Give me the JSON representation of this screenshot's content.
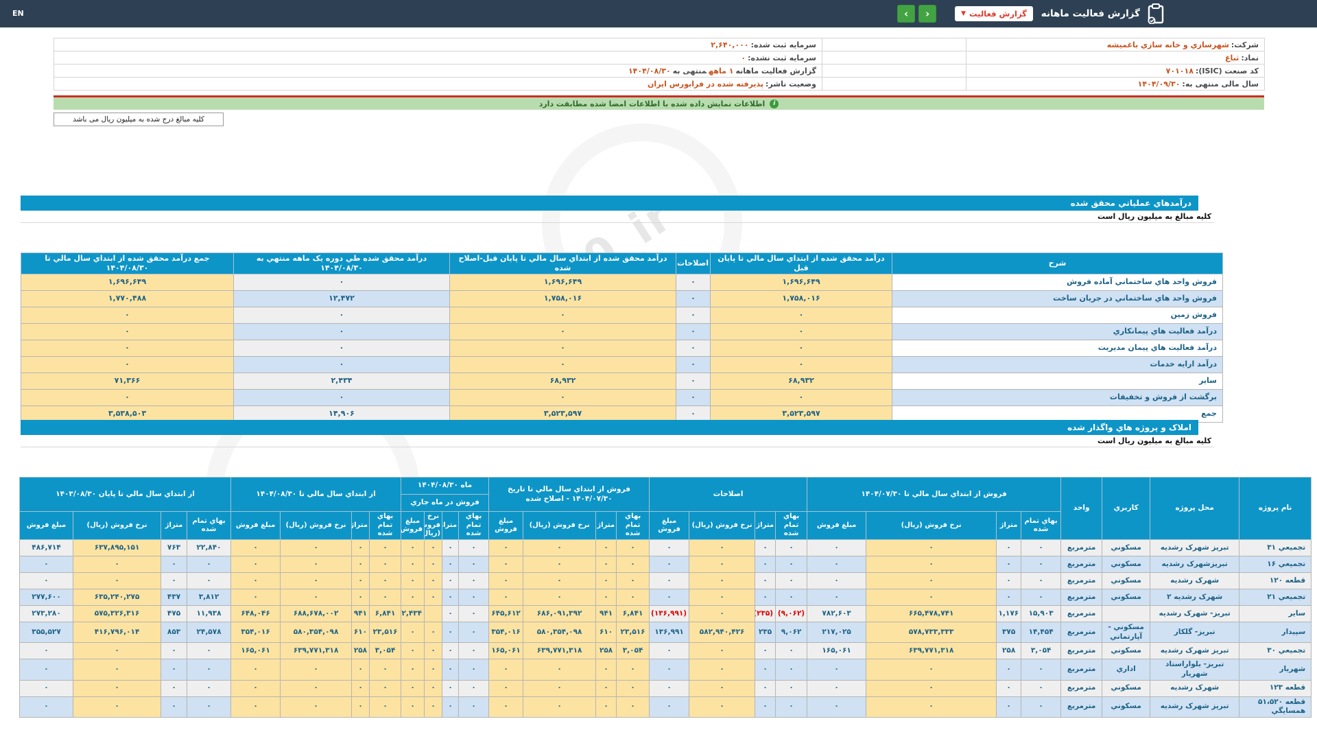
{
  "colors": {
    "accent_blue": "#0e95c8",
    "topbar": "#2e4154",
    "yellow_cell": "#fce3a1",
    "blue_cell": "#cfe1f3",
    "gray_cell": "#efefef",
    "notice_green": "#b9dcae",
    "red_line": "#ce2b24",
    "value_orange": "#c9541f",
    "number_teal": "#1e6287",
    "negative_red": "#e00000",
    "button_green": "#43a343",
    "button_red_text": "#e03a2f"
  },
  "topbar": {
    "en_label": "EN",
    "title": "گزارش فعالیت ماهانه",
    "report_button_label": "گزارش فعالیت",
    "caret_icon": "▼",
    "chevron_left_icon": "‹",
    "chevron_right_icon": "›",
    "clipboard_icon": "clipboard-icon"
  },
  "header_info": {
    "rows": [
      {
        "right": {
          "label": "شرکت:",
          "value": "شهرسازي و خانه سازي باغميشه"
        },
        "left": {
          "label": "سرمایه ثبت شده:",
          "value": "۲,۶۴۰,۰۰۰"
        }
      },
      {
        "right": {
          "label": "نماد:",
          "value": "ثباغ"
        },
        "left": {
          "label": "سرمایه ثبت نشده:",
          "value": "۰"
        }
      },
      {
        "right": {
          "label": "کد صنعت (ISIC):",
          "value": "۷۰۱۰۱۸"
        },
        "left": {
          "label": "گزارش فعالیت ماهانه",
          "value": "۱ ماهه",
          "label2": "منتهی به",
          "value2": "۱۴۰۴/۰۸/۳۰"
        }
      },
      {
        "right": {
          "label": "سال مالی منتهی به:",
          "value": "۱۴۰۴/۰۹/۳۰"
        },
        "left": {
          "label": "وضعیت ناشر:",
          "value": "پذیرفته شده در فرابورس ایران"
        }
      }
    ]
  },
  "notice_text": "اطلاعات نمایش داده شده با اطلاعات امضا شده مطابقت دارد",
  "unit_note": "کلیه مبالغ درج شده به میلیون ریال می باشد",
  "watermark": "@Codal360_ir",
  "section1": {
    "title": "درآمدهاي عملياتي محقق شده",
    "subtitle": "کلیه مبالغ به میلیون ریال است",
    "headers": {
      "desc": "شرح",
      "prev": "درآمد محقق شده از ابتداي سال مالي تا پايان قبل",
      "adj": "اصلاحات",
      "adjusted": "درآمد محقق شده از ابتداي سال مالي تا پايان قبل-اصلاح شده",
      "month": "درآمد محقق شده طي دوره يک ماهه منتهي به ۱۴۰۴/۰۸/۳۰",
      "total": "جمع درآمد محقق شده از ابتداي سال مالي تا ۱۴۰۴/۰۸/۳۰"
    },
    "rows": [
      {
        "label": "فروش واحد هاي ساختماني آماده فروش",
        "prev": "۱,۶۹۶,۶۴۹",
        "adj": "۰",
        "adjusted": "۱,۶۹۶,۶۴۹",
        "month": "۰",
        "total": "۱,۶۹۶,۶۴۹"
      },
      {
        "label": "فروش واحد هاي ساختماني در جريان ساخت",
        "prev": "۱,۷۵۸,۰۱۶",
        "adj": "۰",
        "adjusted": "۱,۷۵۸,۰۱۶",
        "month": "۱۲,۴۷۲",
        "total": "۱,۷۷۰,۴۸۸"
      },
      {
        "label": "فروش زمين",
        "prev": "۰",
        "adj": "۰",
        "adjusted": "۰",
        "month": "۰",
        "total": "۰"
      },
      {
        "label": "درآمد فعاليت هاي پيمانکاري",
        "prev": "۰",
        "adj": "۰",
        "adjusted": "۰",
        "month": "۰",
        "total": "۰"
      },
      {
        "label": "درآمد فعاليت هاي پيمان مديريت",
        "prev": "۰",
        "adj": "۰",
        "adjusted": "۰",
        "month": "۰",
        "total": "۰"
      },
      {
        "label": "درآمد ارايه خدمات",
        "prev": "۰",
        "adj": "۰",
        "adjusted": "۰",
        "month": "۰",
        "total": "۰"
      },
      {
        "label": "ساير",
        "prev": "۶۸,۹۳۲",
        "adj": "۰",
        "adjusted": "۶۸,۹۳۲",
        "month": "۲,۴۳۴",
        "total": "۷۱,۳۶۶"
      },
      {
        "label": "برگشت از فروش و تخفيفات",
        "prev": "۰",
        "adj": "۰",
        "adjusted": "۰",
        "month": "۰",
        "total": "۰"
      },
      {
        "label": "جمع",
        "prev": "۳,۵۲۳,۵۹۷",
        "adj": "۰",
        "adjusted": "۳,۵۲۳,۵۹۷",
        "month": "۱۴,۹۰۶",
        "total": "۳,۵۳۸,۵۰۳",
        "is_total": true
      }
    ]
  },
  "section2": {
    "title": "املاک و پروژه هاي واگذار شده",
    "subtitle": "کلیه مبالغ به میلیون ریال است",
    "fixed_headers": [
      "نام پروژه",
      "محل پروژه",
      "کاربري",
      "واحد"
    ],
    "groups": {
      "g1": "فروش از ابتداي سال مالي تا ۱۴۰۴/۰۷/۳۰",
      "adj": "اصلاحات",
      "adjusted": "فروش از ابتداي سال مالي تا تاريخ ۱۴۰۴/۰۷/۳۰ - اصلاح شده",
      "month_title": "ماه ۱۴۰۴/۰۸/۳۰",
      "month_sub": "فروش در ماه جاري",
      "ytd": "از ابتداي سال مالي تا ۱۴۰۴/۰۸/۳۰",
      "prev": "از ابتداي سال مالي تا پايان ۱۴۰۳/۰۸/۳۰"
    },
    "sub_headers": {
      "cost": "بهاي تمام شده",
      "area": "متراژ",
      "rate": "نرخ فروش (ريال)",
      "amount": "مبلغ فروش"
    },
    "rows": [
      {
        "name": "تجميعي ۳۱",
        "location": "تبريز شهرک رشديه",
        "usage": "مسکوني",
        "unit": "مترمربع",
        "g1": [
          "۰",
          "۰",
          "۰",
          "۰"
        ],
        "adj": [
          "۰",
          "۰",
          "۰",
          "۰"
        ],
        "adjusted": [
          "۰",
          "۰",
          "۰",
          "۰"
        ],
        "month": [
          "۰",
          "۰",
          "۰",
          "۰"
        ],
        "ytd": [
          "۰",
          "۰",
          "۰",
          "۰"
        ],
        "prev": [
          "۲۲,۸۴۰",
          "۷۶۳",
          "۶۳۷,۸۹۵,۱۵۱",
          "۴۸۶,۷۱۴"
        ]
      },
      {
        "name": "تجميعي ۱۶",
        "location": "تبريزشهرک رشديه",
        "usage": "مسکوني",
        "unit": "مترمربع",
        "g1": [
          "۰",
          "۰",
          "۰",
          "۰"
        ],
        "adj": [
          "۰",
          "۰",
          "۰",
          "۰"
        ],
        "adjusted": [
          "۰",
          "۰",
          "۰",
          "۰"
        ],
        "month": [
          "۰",
          "۰",
          "۰",
          "۰"
        ],
        "ytd": [
          "۰",
          "۰",
          "۰",
          "۰"
        ],
        "prev": [
          "۰",
          "۰",
          "۰",
          "۰"
        ]
      },
      {
        "name": "قطعه ۱۲۰",
        "location": "شهرک رشديه",
        "usage": "مسکوني",
        "unit": "مترمربع",
        "g1": [
          "۰",
          "۰",
          "۰",
          "۰"
        ],
        "adj": [
          "۰",
          "۰",
          "۰",
          "۰"
        ],
        "adjusted": [
          "۰",
          "۰",
          "۰",
          "۰"
        ],
        "month": [
          "۰",
          "۰",
          "۰",
          "۰"
        ],
        "ytd": [
          "۰",
          "۰",
          "۰",
          "۰"
        ],
        "prev": [
          "۰",
          "۰",
          "۰",
          "۰"
        ]
      },
      {
        "name": "تجميعي ۲۱",
        "location": "شهرک رشديه ۲",
        "usage": "مسکوني",
        "unit": "مترمربع",
        "g1": [
          "۰",
          "۰",
          "۰",
          "۰"
        ],
        "adj": [
          "۰",
          "۰",
          "۰",
          "۰"
        ],
        "adjusted": [
          "۰",
          "۰",
          "۰",
          "۰"
        ],
        "month": [
          "۰",
          "۰",
          "۰",
          "۰"
        ],
        "ytd": [
          "۰",
          "۰",
          "۰",
          "۰"
        ],
        "prev": [
          "۳,۸۱۲",
          "۴۳۷",
          "۶۳۵,۲۴۰,۲۷۵",
          "۲۷۷,۶۰۰"
        ]
      },
      {
        "name": "ساير",
        "location": "تبريز- شهرک رشديه",
        "usage": "",
        "unit": "مترمربع",
        "g1": [
          "۱۵,۹۰۳",
          "۱,۱۷۶",
          "۶۶۵,۴۷۸,۷۴۱",
          "۷۸۲,۶۰۳"
        ],
        "adj": [
          "(۹,۰۶۲)",
          "(۲۳۵)",
          "۰",
          "(۱۳۶,۹۹۱)"
        ],
        "adjusted": [
          "۶,۸۴۱",
          "۹۴۱",
          "۶۸۶,۰۹۱,۳۹۲",
          "۶۴۵,۶۱۲"
        ],
        "month": [
          "۰",
          "۰",
          "",
          "۲,۴۳۴"
        ],
        "ytd": [
          "۶,۸۴۱",
          "۹۴۱",
          "۶۸۸,۶۷۸,۰۰۲",
          "۶۴۸,۰۴۶"
        ],
        "prev": [
          "۱۱,۹۳۸",
          "۴۷۵",
          "۵۷۵,۳۲۶,۳۱۶",
          "۲۷۳,۲۸۰"
        ]
      },
      {
        "name": "سپيدار",
        "location": "تبريز- گلکار",
        "usage": "مسکوني - آپارتماني",
        "unit": "مترمربع",
        "g1": [
          "۱۴,۴۵۴",
          "۳۷۵",
          "۵۷۸,۷۳۳,۳۳۳",
          "۲۱۷,۰۲۵"
        ],
        "adj": [
          "۹,۰۶۲",
          "۲۳۵",
          "۵۸۲,۹۴۰,۴۲۶",
          "۱۳۶,۹۹۱"
        ],
        "adjusted": [
          "۲۳,۵۱۶",
          "۶۱۰",
          "۵۸۰,۳۵۴,۰۹۸",
          "۳۵۴,۰۱۶"
        ],
        "month": [
          "۰",
          "۰",
          "۰",
          "۰"
        ],
        "ytd": [
          "۲۳,۵۱۶",
          "۶۱۰",
          "۵۸۰,۳۵۴,۰۹۸",
          "۳۵۴,۰۱۶"
        ],
        "prev": [
          "۲۴,۵۷۸",
          "۸۵۳",
          "۴۱۶,۷۹۶,۰۱۴",
          "۳۵۵,۵۲۷"
        ]
      },
      {
        "name": "تجميعي ۳۰",
        "location": "تبريز شهرک رشديه",
        "usage": "مسکوني",
        "unit": "مترمربع",
        "g1": [
          "۳,۰۵۴",
          "۲۵۸",
          "۶۳۹,۷۷۱,۳۱۸",
          "۱۶۵,۰۶۱"
        ],
        "adj": [
          "۰",
          "۰",
          "۰",
          "۰"
        ],
        "adjusted": [
          "۳,۰۵۴",
          "۲۵۸",
          "۶۳۹,۷۷۱,۳۱۸",
          "۱۶۵,۰۶۱"
        ],
        "month": [
          "۰",
          "۰",
          "۰",
          "۰"
        ],
        "ytd": [
          "۳,۰۵۴",
          "۲۵۸",
          "۶۳۹,۷۷۱,۳۱۸",
          "۱۶۵,۰۶۱"
        ],
        "prev": [
          "۰",
          "۰",
          "۰",
          "۰"
        ]
      },
      {
        "name": "شهريار",
        "location": "تبريز- بلواراستاد شهريار",
        "usage": "اداري",
        "unit": "مترمربع",
        "g1": [
          "۰",
          "۰",
          "۰",
          "۰"
        ],
        "adj": [
          "۰",
          "۰",
          "۰",
          "۰"
        ],
        "adjusted": [
          "۰",
          "۰",
          "۰",
          "۰"
        ],
        "month": [
          "۰",
          "۰",
          "۰",
          "۰"
        ],
        "ytd": [
          "۰",
          "۰",
          "۰",
          "۰"
        ],
        "prev": [
          "۰",
          "۰",
          "۰",
          "۰"
        ]
      },
      {
        "name": "قطعه ۱۲۳",
        "location": "شهرک رشديه",
        "usage": "مسکوني",
        "unit": "مترمربع",
        "g1": [
          "۰",
          "۰",
          "۰",
          "۰"
        ],
        "adj": [
          "۰",
          "۰",
          "۰",
          "۰"
        ],
        "adjusted": [
          "۰",
          "۰",
          "۰",
          "۰"
        ],
        "month": [
          "۰",
          "۰",
          "۰",
          "۰"
        ],
        "ytd": [
          "۰",
          "۰",
          "۰",
          "۰"
        ],
        "prev": [
          "۰",
          "۰",
          "۰",
          "۰"
        ]
      },
      {
        "name": "قطعه ۵۱،۵۲۰ همسايگي",
        "location": "تبريز شهرک رشديه",
        "usage": "مسکوني",
        "unit": "مترمربع",
        "g1": [
          "۰",
          "۰",
          "۰",
          "۰"
        ],
        "adj": [
          "۰",
          "۰",
          "۰",
          "۰"
        ],
        "adjusted": [
          "۰",
          "۰",
          "۰",
          "۰"
        ],
        "month": [
          "۰",
          "۰",
          "۰",
          "۰"
        ],
        "ytd": [
          "۰",
          "۰",
          "۰",
          "۰"
        ],
        "prev": [
          "۰",
          "۰",
          "۰",
          "۰"
        ]
      }
    ]
  }
}
